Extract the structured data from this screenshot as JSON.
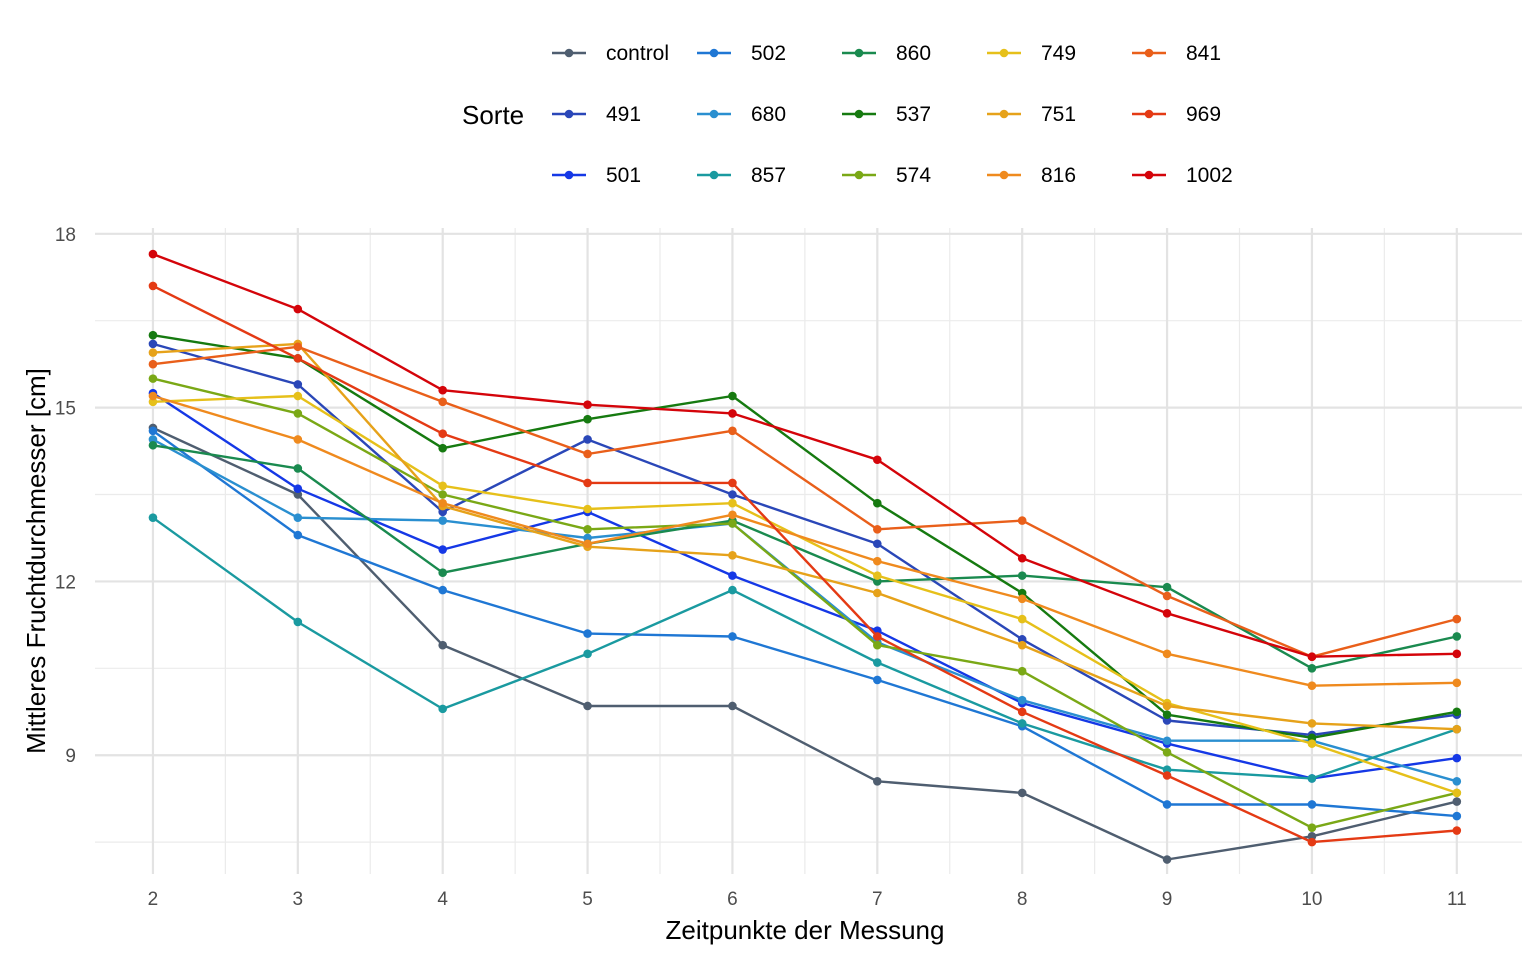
{
  "chart_data": {
    "type": "line",
    "xlabel": "Zeitpunkte der Messung",
    "ylabel": "Mittleres Fruchtdurchmesser [cm]",
    "legend_title": "Sorte",
    "legend_position": "top",
    "grid": true,
    "x": [
      2,
      3,
      4,
      5,
      6,
      7,
      8,
      9,
      10,
      11
    ],
    "xlim": [
      1.6,
      11.45
    ],
    "ylim": [
      6.95,
      18.1
    ],
    "yticks": [
      9,
      12,
      15,
      18
    ],
    "series": [
      {
        "name": "control",
        "color": "#4f5e70",
        "values": [
          14.65,
          13.5,
          10.9,
          9.85,
          9.85,
          8.55,
          8.35,
          7.2,
          7.6,
          8.2
        ]
      },
      {
        "name": "491",
        "color": "#2a47b8",
        "values": [
          16.1,
          15.4,
          13.2,
          14.45,
          13.5,
          12.65,
          11.0,
          9.6,
          9.35,
          9.7
        ]
      },
      {
        "name": "501",
        "color": "#1538e6",
        "values": [
          15.25,
          13.6,
          12.55,
          13.2,
          12.1,
          11.15,
          9.9,
          9.2,
          8.6,
          8.95
        ]
      },
      {
        "name": "502",
        "color": "#1f77d4",
        "values": [
          14.6,
          12.8,
          11.85,
          11.1,
          11.05,
          10.3,
          9.5,
          8.15,
          8.15,
          7.95
        ]
      },
      {
        "name": "680",
        "color": "#2a8fd0",
        "values": [
          14.45,
          13.1,
          13.05,
          12.75,
          13.0,
          10.95,
          9.95,
          9.25,
          9.25,
          8.55
        ]
      },
      {
        "name": "857",
        "color": "#1a9aa0",
        "values": [
          13.1,
          11.3,
          9.8,
          10.75,
          11.85,
          10.6,
          9.55,
          8.75,
          8.6,
          9.45
        ]
      },
      {
        "name": "860",
        "color": "#1a8a4f",
        "values": [
          14.35,
          13.95,
          12.15,
          12.65,
          13.05,
          12.0,
          12.1,
          11.9,
          10.5,
          11.05
        ]
      },
      {
        "name": "537",
        "color": "#167a10",
        "values": [
          16.25,
          15.85,
          14.3,
          14.8,
          15.2,
          13.35,
          11.8,
          9.7,
          9.3,
          9.75
        ]
      },
      {
        "name": "574",
        "color": "#7aa816",
        "values": [
          15.5,
          14.9,
          13.5,
          12.9,
          13.0,
          10.9,
          10.45,
          9.05,
          7.75,
          8.35
        ]
      },
      {
        "name": "749",
        "color": "#e6c01a",
        "values": [
          15.1,
          15.2,
          13.65,
          13.25,
          13.35,
          12.1,
          11.35,
          9.9,
          9.2,
          8.35
        ]
      },
      {
        "name": "751",
        "color": "#e6a21a",
        "values": [
          15.95,
          16.1,
          13.3,
          12.6,
          12.45,
          11.8,
          10.9,
          9.85,
          9.55,
          9.45
        ]
      },
      {
        "name": "816",
        "color": "#ef8a1e",
        "values": [
          15.2,
          14.45,
          13.35,
          12.65,
          13.15,
          12.35,
          11.7,
          10.75,
          10.2,
          10.25
        ]
      },
      {
        "name": "841",
        "color": "#e95f1a",
        "values": [
          15.75,
          16.05,
          15.1,
          14.2,
          14.6,
          12.9,
          13.05,
          11.75,
          10.7,
          11.35
        ]
      },
      {
        "name": "969",
        "color": "#e43a14",
        "values": [
          17.1,
          15.85,
          14.55,
          13.7,
          13.7,
          11.05,
          9.75,
          8.65,
          7.5,
          7.7
        ]
      },
      {
        "name": "1002",
        "color": "#d4040a",
        "values": [
          17.65,
          16.7,
          15.3,
          15.05,
          14.9,
          14.1,
          12.4,
          11.45,
          10.7,
          10.75
        ]
      }
    ]
  }
}
